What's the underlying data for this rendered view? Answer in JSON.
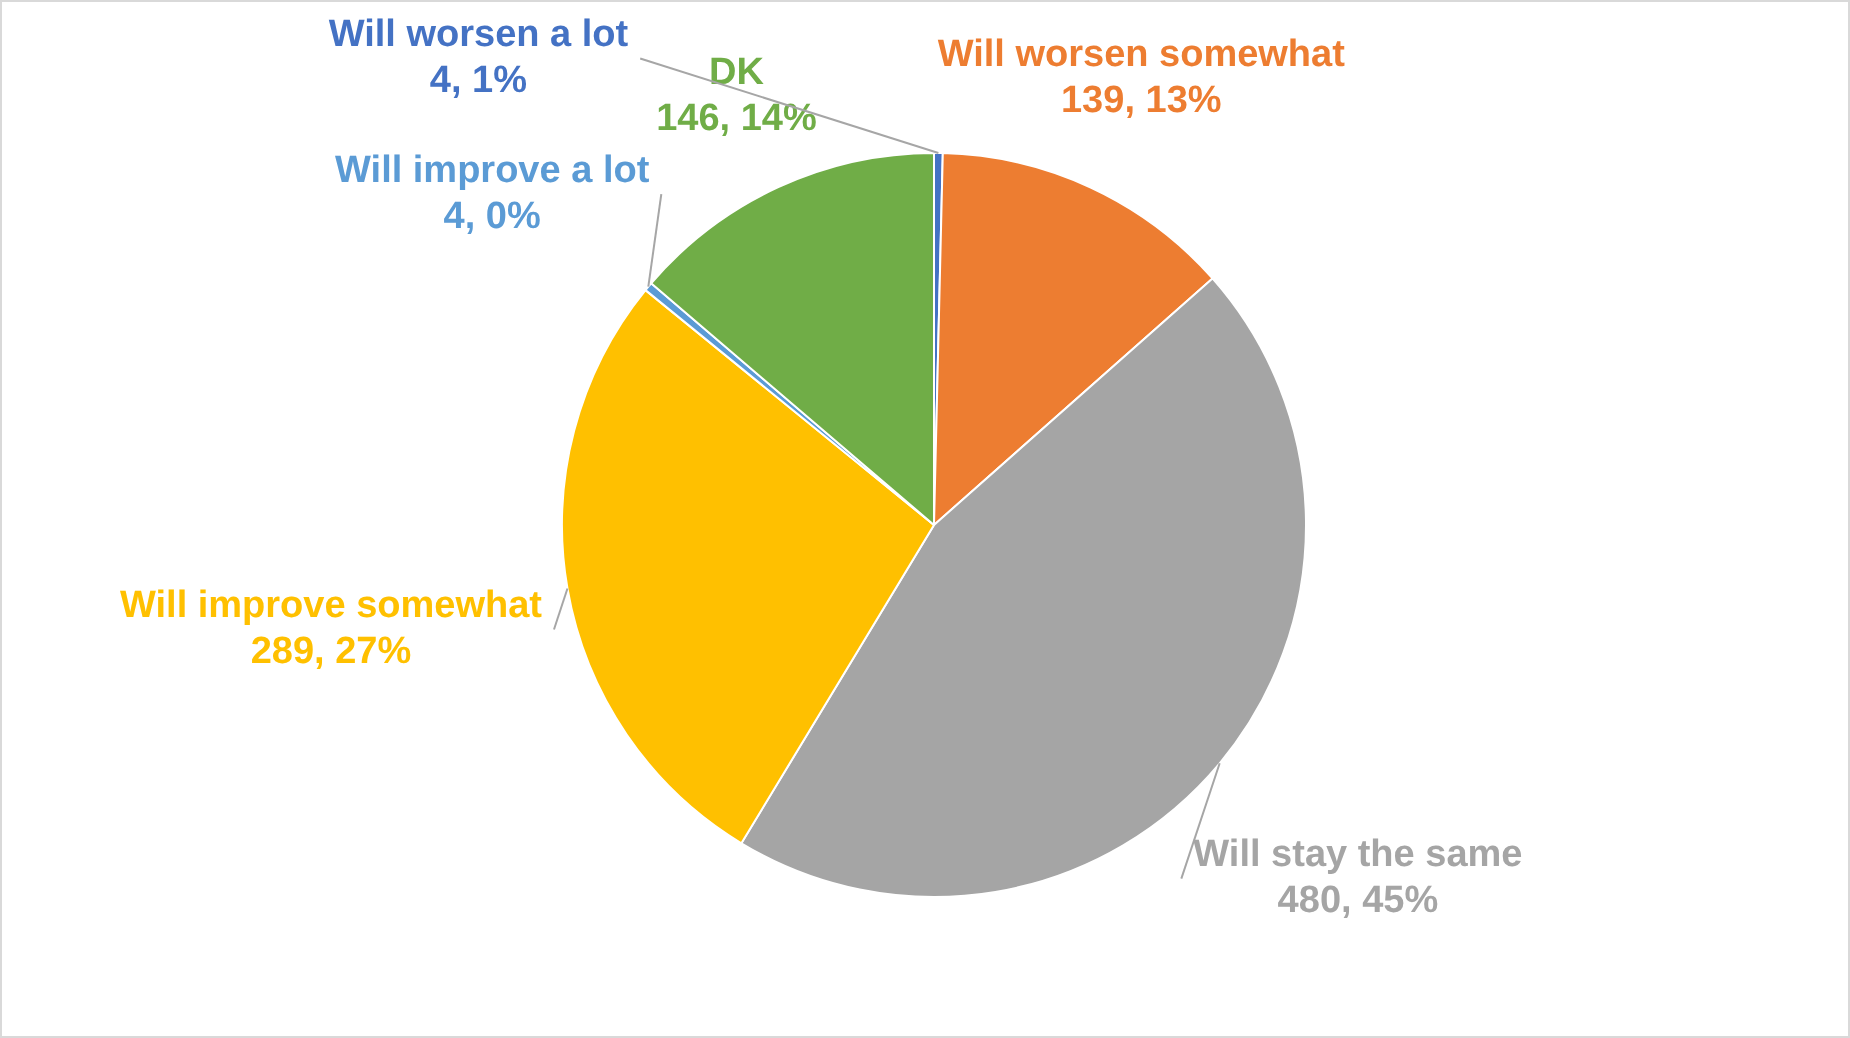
{
  "chart_data": {
    "type": "pie",
    "categories": [
      "Will worsen a lot",
      "Will worsen somewhat",
      "Will stay the same",
      "Will improve somewhat",
      "Will improve a lot",
      "DK"
    ],
    "values": [
      4,
      139,
      480,
      289,
      4,
      146
    ],
    "colors": [
      "#4472c4",
      "#ed7d31",
      "#a5a5a5",
      "#ffc000",
      "#5b9bd5",
      "#70ad47"
    ],
    "value_labels": [
      "4, 1%",
      "139, 13%",
      "480, 45%",
      "289, 27%",
      "4, 0%",
      "146, 14%"
    ],
    "legend": false
  }
}
